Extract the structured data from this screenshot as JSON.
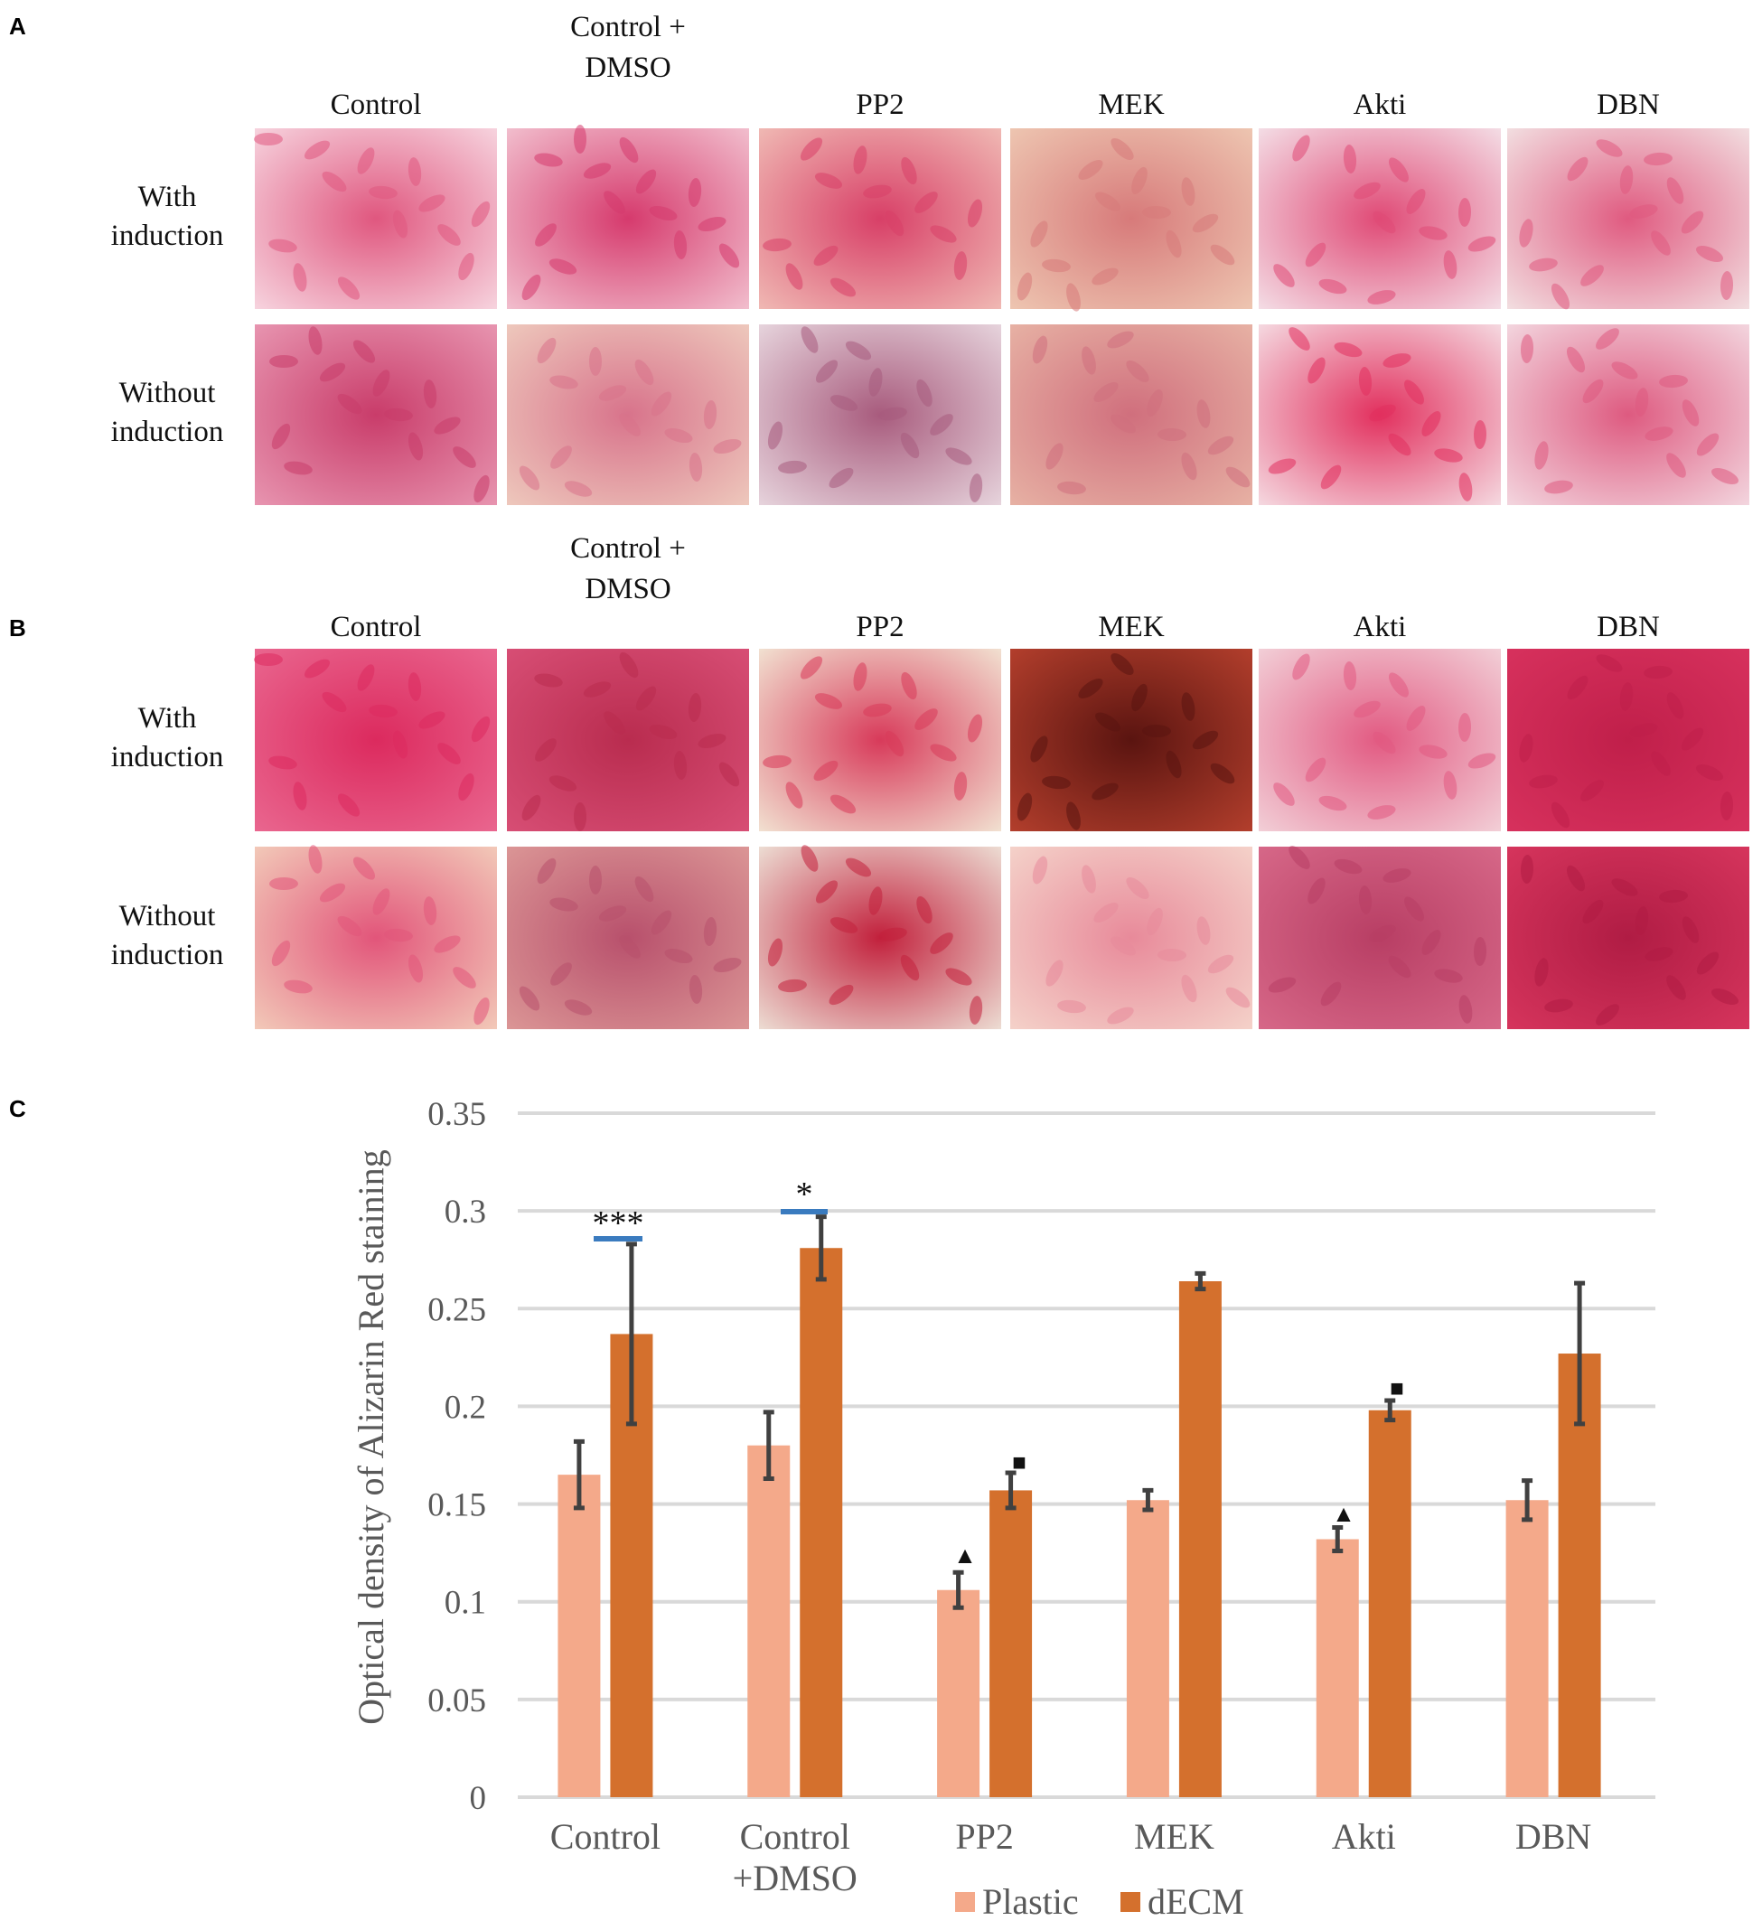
{
  "panel_a": {
    "label": "A",
    "columns": [
      "Control",
      "Control + DMSO",
      "PP2",
      "MEK",
      "Akti",
      "DBN"
    ],
    "rows": [
      "With induction",
      "Without induction"
    ]
  },
  "panel_b": {
    "label": "B",
    "columns": [
      "Control",
      "Control + DMSO",
      "PP2",
      "MEK",
      "Akti",
      "DBN"
    ],
    "rows": [
      "With induction",
      "Without induction"
    ]
  },
  "chart_data": {
    "type": "bar",
    "label": "C",
    "ylabel": "Optical density of Alizarin Red staining",
    "categories": [
      "Control",
      "Control +DMSO",
      "PP2",
      "MEK",
      "Akti",
      "DBN"
    ],
    "series": [
      {
        "name": "Plastic",
        "color": "#f4a98a",
        "values": [
          0.165,
          0.18,
          0.106,
          0.152,
          0.132,
          0.152
        ],
        "errors": [
          0.017,
          0.017,
          0.009,
          0.005,
          0.006,
          0.01
        ]
      },
      {
        "name": "dECM",
        "color": "#d4702d",
        "values": [
          0.237,
          0.281,
          0.157,
          0.264,
          0.198,
          0.227
        ],
        "errors": [
          0.046,
          0.016,
          0.009,
          0.004,
          0.005,
          0.036
        ]
      }
    ],
    "ylim": [
      0,
      0.35
    ],
    "yticks": [
      0,
      0.05,
      0.1,
      0.15,
      0.2,
      0.25,
      0.3,
      0.35
    ],
    "grid": true,
    "annotations": [
      "***",
      "*",
      "▲",
      "■",
      "▲",
      "■"
    ],
    "legend": "bottom"
  }
}
